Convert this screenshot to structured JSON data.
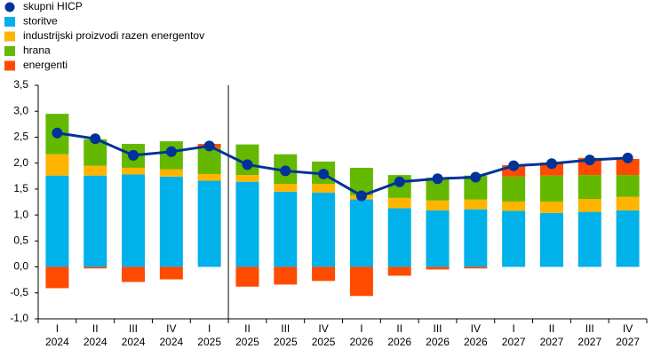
{
  "chart_data": {
    "type": "bar",
    "stacked": true,
    "categories": [
      [
        "I",
        "2024"
      ],
      [
        "II",
        "2024"
      ],
      [
        "III",
        "2024"
      ],
      [
        "IV",
        "2024"
      ],
      [
        "I",
        "2025"
      ],
      [
        "II",
        "2025"
      ],
      [
        "III",
        "2025"
      ],
      [
        "IV",
        "2025"
      ],
      [
        "I",
        "2026"
      ],
      [
        "II",
        "2026"
      ],
      [
        "III",
        "2026"
      ],
      [
        "IV",
        "2026"
      ],
      [
        "I",
        "2027"
      ],
      [
        "II",
        "2027"
      ],
      [
        "III",
        "2027"
      ],
      [
        "IV",
        "2027"
      ]
    ],
    "series": [
      {
        "name": "skupni HICP",
        "type": "line",
        "color": "#003299",
        "values": [
          2.58,
          2.47,
          2.15,
          2.22,
          2.33,
          1.97,
          1.85,
          1.79,
          1.37,
          1.64,
          1.7,
          1.73,
          1.95,
          1.99,
          2.06,
          2.1
        ]
      },
      {
        "name": "storitve",
        "color": "#00b1ea",
        "values": [
          1.76,
          1.76,
          1.78,
          1.74,
          1.66,
          1.64,
          1.45,
          1.43,
          1.3,
          1.13,
          1.09,
          1.11,
          1.08,
          1.04,
          1.06,
          1.09
        ]
      },
      {
        "name": "industrijski proizvodi razen energentov",
        "color": "#ffb400",
        "values": [
          0.41,
          0.19,
          0.13,
          0.14,
          0.13,
          0.13,
          0.15,
          0.17,
          0.08,
          0.2,
          0.19,
          0.19,
          0.18,
          0.22,
          0.25,
          0.26
        ]
      },
      {
        "name": "hrana",
        "color": "#65b800",
        "values": [
          0.78,
          0.51,
          0.46,
          0.54,
          0.51,
          0.59,
          0.57,
          0.43,
          0.53,
          0.44,
          0.44,
          0.46,
          0.48,
          0.5,
          0.46,
          0.42
        ]
      },
      {
        "name": "energenti",
        "color": "#ff4b00",
        "values": [
          -0.41,
          -0.03,
          -0.29,
          -0.24,
          0.07,
          -0.38,
          -0.34,
          -0.27,
          -0.56,
          -0.17,
          -0.05,
          -0.03,
          0.22,
          0.25,
          0.33,
          0.31
        ]
      }
    ],
    "ylim": [
      -1,
      3.5
    ],
    "yticks": [
      {
        "value": -1,
        "label": "-1,0"
      },
      {
        "value": -0.5,
        "label": "-0,5"
      },
      {
        "value": 0,
        "label": "0,0"
      },
      {
        "value": 0.5,
        "label": "0,5"
      },
      {
        "value": 1,
        "label": "1,0"
      },
      {
        "value": 1.5,
        "label": "1,5"
      },
      {
        "value": 2,
        "label": "2,0"
      },
      {
        "value": 2.5,
        "label": "2,5"
      },
      {
        "value": 3,
        "label": "3,0"
      },
      {
        "value": 3.5,
        "label": "3,5"
      }
    ],
    "grid": false,
    "legend": "top-left"
  }
}
